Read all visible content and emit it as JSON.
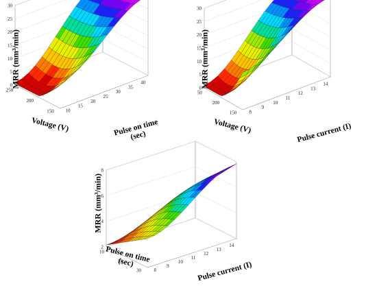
{
  "figure": {
    "background": "#ffffff"
  },
  "colormap": [
    "#d90000",
    "#ff2a00",
    "#ff7a00",
    "#ffc400",
    "#e8f000",
    "#9eea00",
    "#3ee000",
    "#00e09a",
    "#00d8ff",
    "#0090ff",
    "#1a20ff",
    "#7a00ff",
    "#d000ff"
  ],
  "chart_data": [
    {
      "type": "surface",
      "title": "",
      "zlabel": "MRR (mm³/min)",
      "xlabel": "Voltage (V)",
      "ylabel": "Pulse on time (sec)",
      "zticks": [
        "30",
        "25",
        "20",
        "15",
        "10",
        "5",
        "0"
      ],
      "zlim": [
        0,
        30
      ],
      "xticks": [
        "250",
        "200",
        "150"
      ],
      "xlim": [
        150,
        250
      ],
      "yticks": [
        "10",
        "15",
        "20",
        "25",
        "30",
        "35",
        "40"
      ],
      "ylim": [
        10,
        40
      ],
      "grid": true,
      "surface_corners": {
        "v150_ton10": 1,
        "v250_ton10": 10,
        "v150_ton40": 27,
        "v250_ton40": 30,
        "v200_ton10": 3
      }
    },
    {
      "type": "surface",
      "title": "",
      "zlabel": "MRR (mm³/min)",
      "xlabel": "Voltage (V)",
      "ylabel": "Pulse current (I)",
      "zticks": [
        "30",
        "25",
        "20",
        "15",
        "10",
        "5",
        "0"
      ],
      "zlim": [
        0,
        30
      ],
      "xticks": [
        "50",
        "200",
        "150"
      ],
      "xlim": [
        150,
        250
      ],
      "yticks": [
        "8",
        "9",
        "10",
        "11",
        "12",
        "13",
        "14"
      ],
      "ylim": [
        8,
        14
      ],
      "grid": true,
      "surface_corners": {
        "v150_i8": 1,
        "v250_i8": 14,
        "v150_i14": 26,
        "v250_i14": 30,
        "v200_i8": 2
      }
    },
    {
      "type": "surface",
      "title": "",
      "zlabel": "MRR (mm³/min)",
      "xlabel": "Pulse on time (sec)",
      "ylabel": "Pulse current (I)",
      "zticks": [
        "8",
        "6",
        "4",
        "2"
      ],
      "zlim": [
        1,
        9
      ],
      "xticks": [
        "10",
        "20",
        "30"
      ],
      "xlim": [
        10,
        40
      ],
      "yticks": [
        "8",
        "9",
        "10",
        "11",
        "12",
        "13",
        "14"
      ],
      "ylim": [
        8,
        14
      ],
      "grid": true,
      "surface_corners": {
        "ton10_i8": 1.2,
        "ton40_i8": 4,
        "ton10_i14": 4,
        "ton40_i14": 8.8
      }
    }
  ]
}
